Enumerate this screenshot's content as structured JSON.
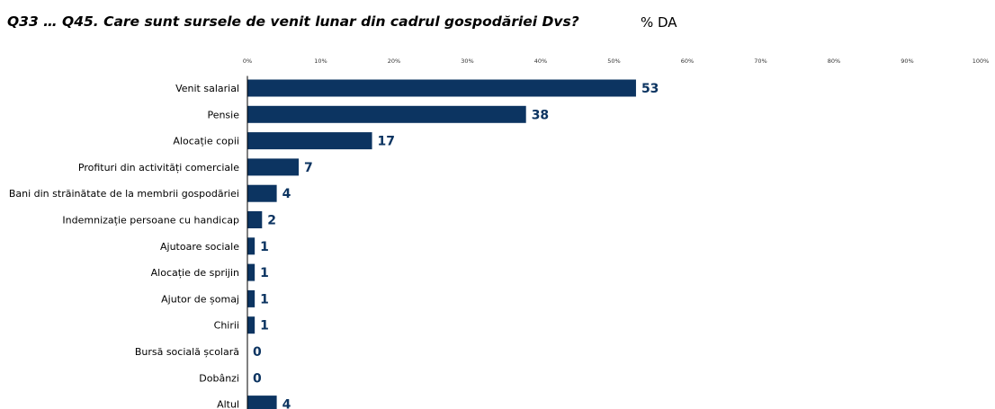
{
  "header": {
    "question": "Q33 … Q45.  Care sunt sursele de venit lunar din cadrul gospodăriei Dvs?",
    "unit": "% DA"
  },
  "colors": {
    "bar": "#0c3461",
    "value_label": "#0c3461",
    "axis": "#000000"
  },
  "chart_data": {
    "type": "bar",
    "orientation": "horizontal",
    "categories": [
      "Venit salarial",
      "Pensie",
      "Alocație copii",
      "Profituri din activități comerciale",
      "Bani din străinătate de la membrii gospodăriei",
      "Indemnizație persoane cu handicap",
      "Ajutoare sociale",
      "Alocație de sprijin",
      "Ajutor de șomaj",
      "Chirii",
      "Bursă socială școlară",
      "Dobânzi",
      "Altul"
    ],
    "values": [
      53,
      38,
      17,
      7,
      4,
      2,
      1,
      1,
      1,
      1,
      0,
      0,
      4
    ],
    "xlim": [
      0,
      100
    ],
    "x_ticks": [
      0,
      10,
      20,
      30,
      40,
      50,
      60,
      70,
      80,
      90,
      100
    ],
    "x_tick_labels": [
      "0%",
      "10%",
      "20%",
      "30%",
      "40%",
      "50%",
      "60%",
      "70%",
      "80%",
      "90%",
      "100%"
    ],
    "x_axis_position": "top",
    "grid": false,
    "legend": "none",
    "data_labels": true
  }
}
